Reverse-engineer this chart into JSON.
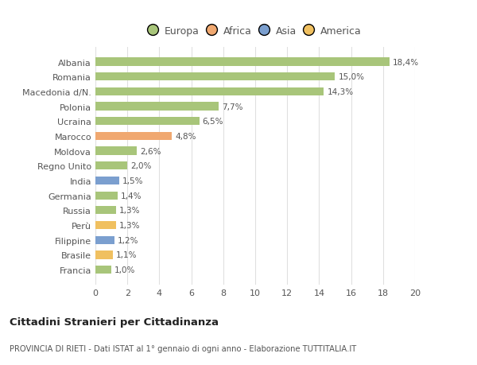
{
  "title": "Cittadini Stranieri per Cittadinanza",
  "subtitle": "PROVINCIA DI RIETI - Dati ISTAT al 1° gennaio di ogni anno - Elaborazione TUTTITALIA.IT",
  "categories": [
    "Francia",
    "Brasile",
    "Filippine",
    "Perù",
    "Russia",
    "Germania",
    "India",
    "Regno Unito",
    "Moldova",
    "Marocco",
    "Ucraina",
    "Polonia",
    "Macedonia d/N.",
    "Romania",
    "Albania"
  ],
  "values": [
    1.0,
    1.1,
    1.2,
    1.3,
    1.3,
    1.4,
    1.5,
    2.0,
    2.6,
    4.8,
    6.5,
    7.7,
    14.3,
    15.0,
    18.4
  ],
  "labels": [
    "1,0%",
    "1,1%",
    "1,2%",
    "1,3%",
    "1,3%",
    "1,4%",
    "1,5%",
    "2,0%",
    "2,6%",
    "4,8%",
    "6,5%",
    "7,7%",
    "14,3%",
    "15,0%",
    "18,4%"
  ],
  "colors": [
    "#a8c57a",
    "#f0c060",
    "#7b9fcf",
    "#f0c060",
    "#a8c57a",
    "#a8c57a",
    "#7b9fcf",
    "#a8c57a",
    "#a8c57a",
    "#f0a870",
    "#a8c57a",
    "#a8c57a",
    "#a8c57a",
    "#a8c57a",
    "#a8c57a"
  ],
  "legend_labels": [
    "Europa",
    "Africa",
    "Asia",
    "America"
  ],
  "legend_colors": [
    "#a8c57a",
    "#f0a870",
    "#7b9fcf",
    "#f0c060"
  ],
  "xlim": [
    0,
    20
  ],
  "xticks": [
    0,
    2,
    4,
    6,
    8,
    10,
    12,
    14,
    16,
    18,
    20
  ],
  "background_color": "#ffffff",
  "bar_height": 0.55,
  "grid_color": "#e0e0e0",
  "text_color": "#555555"
}
